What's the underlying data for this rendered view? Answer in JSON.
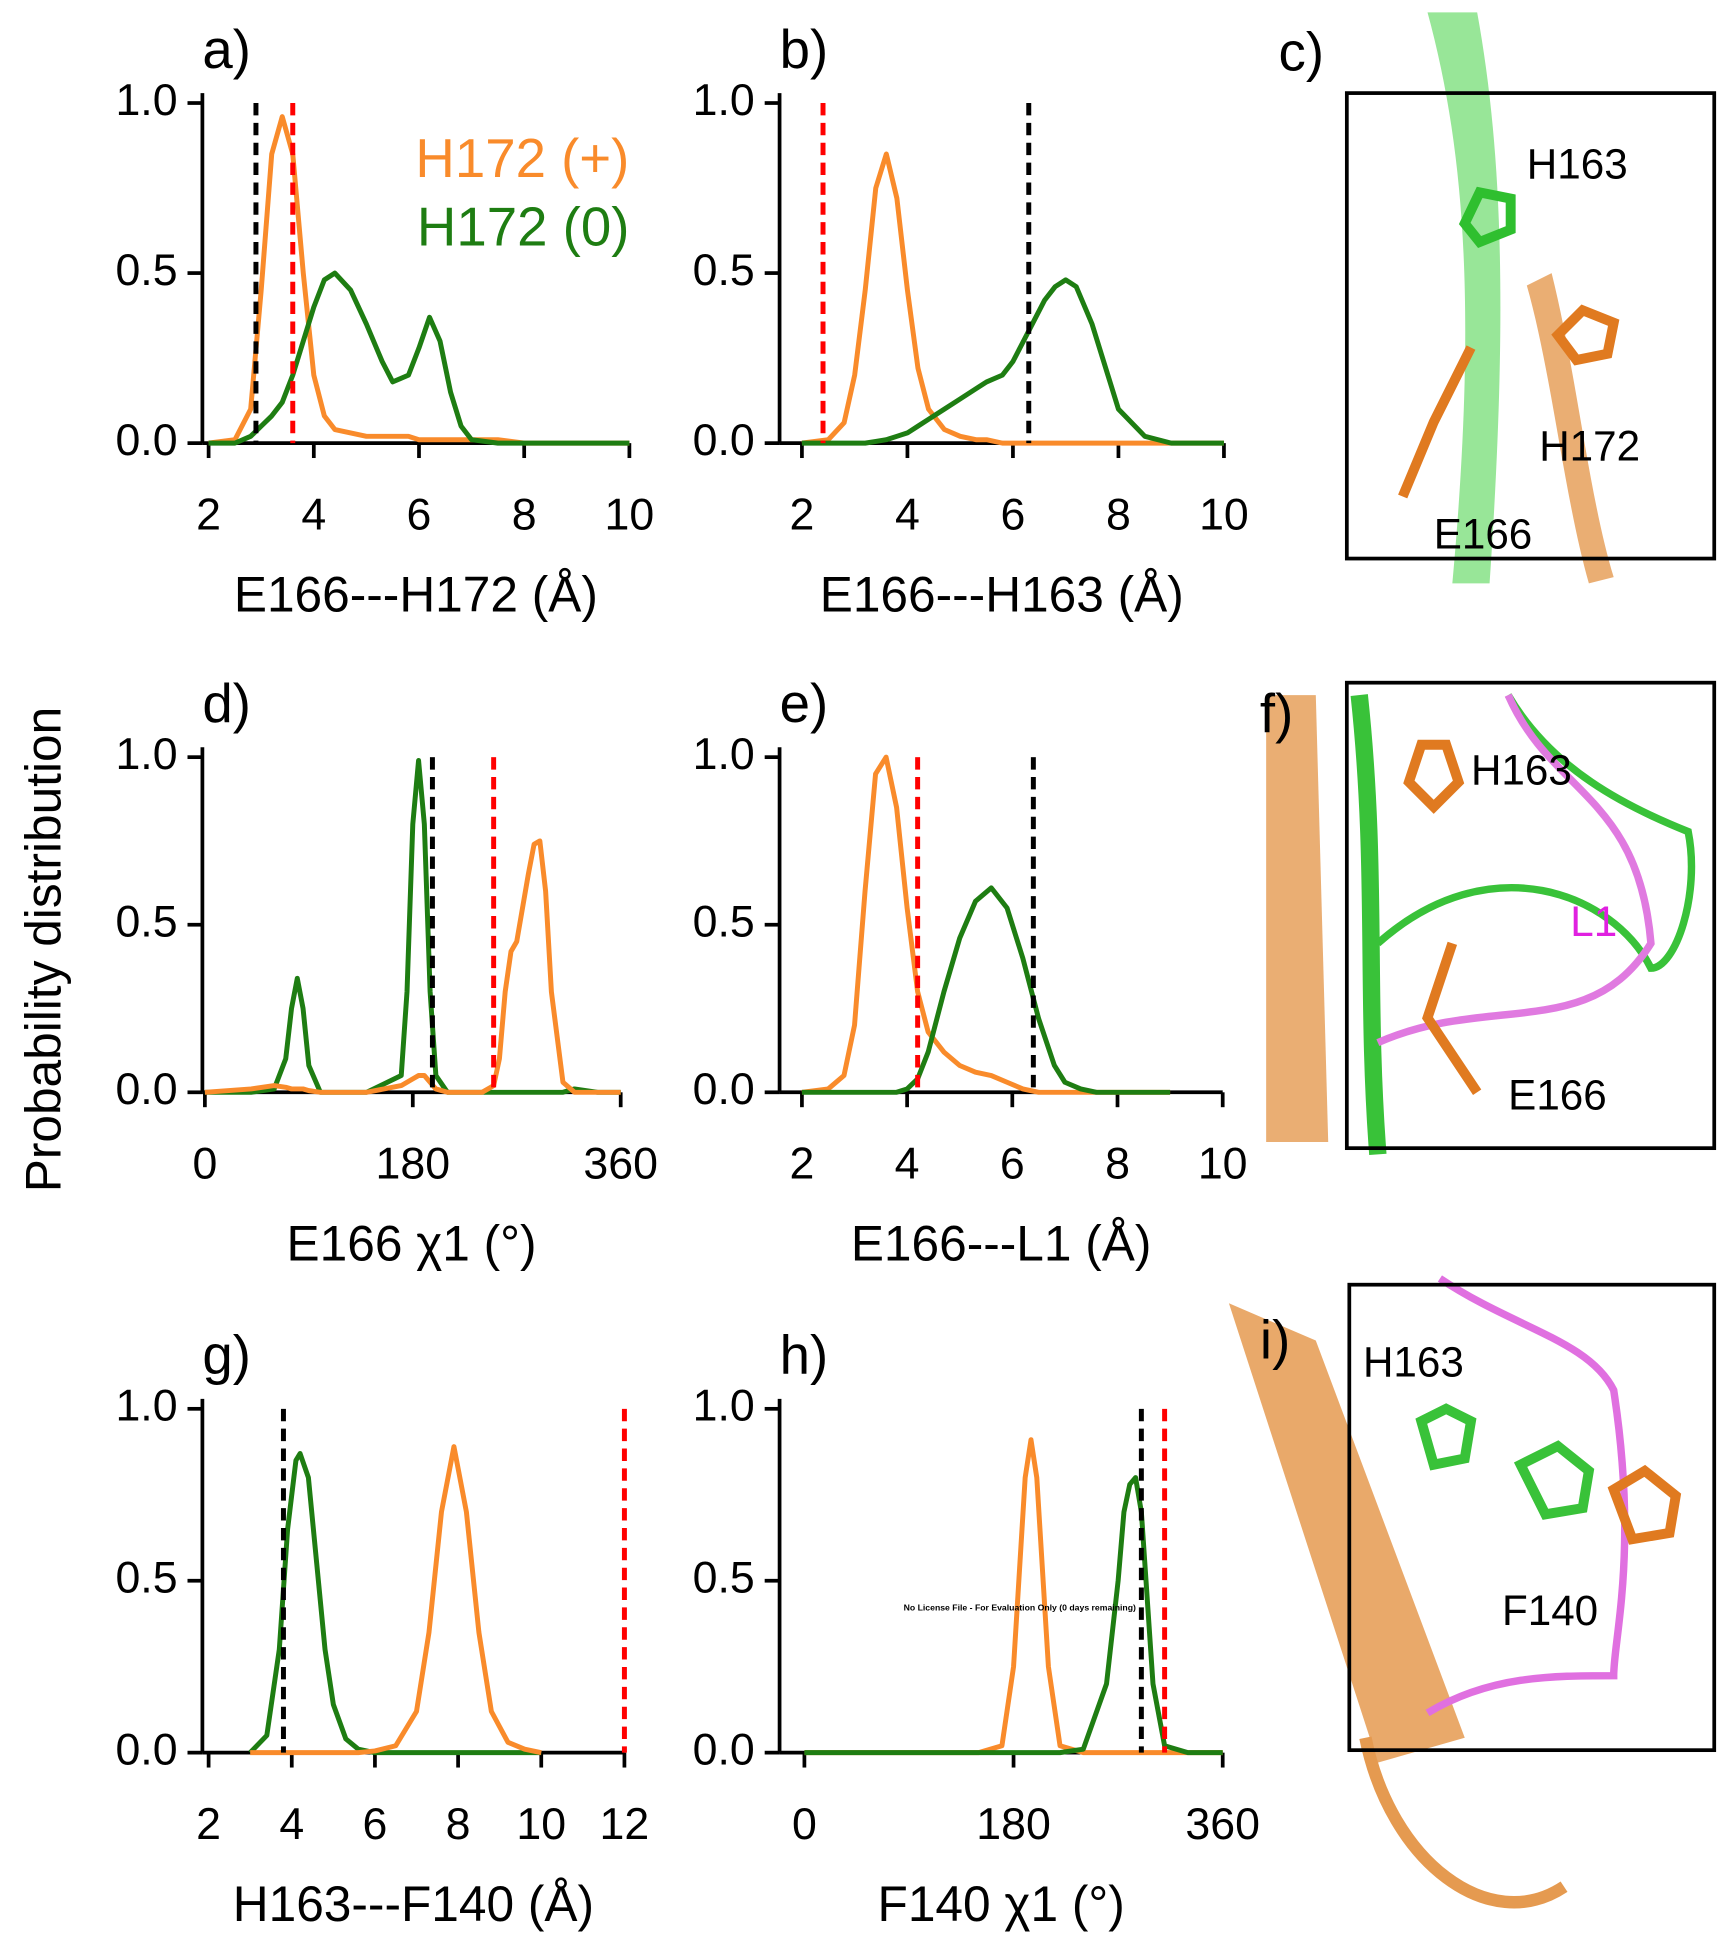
{
  "ylabel": "Probability distribution",
  "chart_data": [
    {
      "type": "line",
      "panel": "a)",
      "xlabel": "E166---H172 (Å)",
      "xlim": [
        2,
        10
      ],
      "xticks": [
        2,
        4,
        6,
        8,
        10
      ],
      "ylim": [
        0,
        1
      ],
      "yticks": [
        {
          "value": 0,
          "label": "0.0"
        },
        0.5,
        {
          "value": 1,
          "label": "1.0"
        }
      ],
      "x": [
        2,
        2.5,
        2.8,
        3.0,
        3.2,
        3.4,
        3.6,
        3.8,
        4.0,
        4.2,
        4.4,
        4.7,
        5.0,
        5.3,
        5.5,
        5.8,
        6.0,
        6.2,
        6.4,
        6.6,
        6.8,
        7.0,
        7.5,
        8,
        9,
        10
      ],
      "series": [
        {
          "name": "H172 (+)",
          "color": "#f98b2b",
          "values": [
            0,
            0.01,
            0.1,
            0.45,
            0.85,
            0.96,
            0.85,
            0.5,
            0.2,
            0.08,
            0.04,
            0.03,
            0.02,
            0.02,
            0.02,
            0.02,
            0.01,
            0.01,
            0.01,
            0.01,
            0.01,
            0.01,
            0.01,
            0,
            0,
            0
          ]
        },
        {
          "name": "H172 (0)",
          "color": "#1e7d12",
          "values": [
            0,
            0,
            0.02,
            0.05,
            0.08,
            0.12,
            0.2,
            0.3,
            0.4,
            0.48,
            0.5,
            0.45,
            0.35,
            0.24,
            0.18,
            0.2,
            0.28,
            0.37,
            0.3,
            0.15,
            0.05,
            0.01,
            0,
            0,
            0,
            0
          ]
        }
      ],
      "vlines": [
        {
          "value": 2.9,
          "color": "#000000"
        },
        {
          "value": 3.6,
          "color": "#ff0000"
        }
      ]
    },
    {
      "type": "line",
      "panel": "b)",
      "xlabel": "E166---H163 (Å)",
      "xlim": [
        2,
        10
      ],
      "xticks": [
        2,
        4,
        6,
        8,
        10
      ],
      "ylim": [
        0,
        1
      ],
      "yticks": [
        {
          "value": 0,
          "label": "0.0"
        },
        0.5,
        {
          "value": 1,
          "label": "1.0"
        }
      ],
      "x": [
        2,
        2.5,
        2.8,
        3.0,
        3.2,
        3.4,
        3.6,
        3.8,
        4.0,
        4.2,
        4.4,
        4.7,
        5.0,
        5.3,
        5.5,
        5.8,
        6.0,
        6.2,
        6.4,
        6.6,
        6.8,
        7.0,
        7.2,
        7.5,
        7.8,
        8.0,
        8.5,
        9,
        10
      ],
      "series": [
        {
          "color": "#f98b2b",
          "values": [
            0,
            0.01,
            0.06,
            0.2,
            0.45,
            0.75,
            0.85,
            0.72,
            0.45,
            0.22,
            0.1,
            0.04,
            0.02,
            0.01,
            0.01,
            0,
            0,
            0,
            0,
            0,
            0,
            0,
            0,
            0,
            0,
            0,
            0,
            0,
            0
          ]
        },
        {
          "color": "#1e7d12",
          "values": [
            0,
            0,
            0,
            0,
            0,
            0.005,
            0.01,
            0.02,
            0.03,
            0.05,
            0.07,
            0.1,
            0.13,
            0.16,
            0.18,
            0.2,
            0.24,
            0.3,
            0.36,
            0.42,
            0.46,
            0.48,
            0.46,
            0.35,
            0.2,
            0.1,
            0.02,
            0,
            0
          ]
        }
      ],
      "vlines": [
        {
          "value": 2.4,
          "color": "#ff0000"
        },
        {
          "value": 6.3,
          "color": "#000000"
        }
      ]
    },
    {
      "type": "line",
      "panel": "d)",
      "xlabel": "E166 χ1 (°)",
      "xlim": [
        0,
        360
      ],
      "xticks": [
        0,
        180,
        360
      ],
      "ylim": [
        0,
        1
      ],
      "yticks": [
        {
          "value": 0,
          "label": "0.0"
        },
        0.5,
        {
          "value": 1,
          "label": "1.0"
        }
      ],
      "x": [
        0,
        40,
        60,
        70,
        75,
        80,
        85,
        90,
        100,
        140,
        170,
        175,
        180,
        185,
        190,
        195,
        200,
        210,
        240,
        250,
        255,
        260,
        265,
        270,
        280,
        285,
        290,
        295,
        300,
        310,
        320,
        340,
        360
      ],
      "series": [
        {
          "color": "#1e7d12",
          "values": [
            0,
            0,
            0.01,
            0.1,
            0.25,
            0.34,
            0.25,
            0.08,
            0,
            0,
            0.05,
            0.3,
            0.8,
            0.99,
            0.8,
            0.3,
            0.05,
            0,
            0,
            0,
            0,
            0,
            0,
            0,
            0,
            0,
            0,
            0,
            0,
            0,
            0.01,
            0,
            0
          ]
        },
        {
          "color": "#f98b2b",
          "values": [
            0,
            0.01,
            0.02,
            0.015,
            0.01,
            0.01,
            0.01,
            0.005,
            0,
            0,
            0.02,
            0.03,
            0.04,
            0.05,
            0.05,
            0.03,
            0.01,
            0,
            0,
            0.02,
            0.1,
            0.3,
            0.42,
            0.45,
            0.65,
            0.74,
            0.75,
            0.6,
            0.3,
            0.03,
            0,
            0,
            0
          ]
        }
      ],
      "vlines": [
        {
          "value": 197,
          "color": "#000000"
        },
        {
          "value": 250,
          "color": "#ff0000"
        }
      ]
    },
    {
      "type": "line",
      "panel": "e)",
      "xlabel": "E166---L1 (Å)",
      "xlim": [
        2,
        10
      ],
      "xticks": [
        2,
        4,
        6,
        8,
        10
      ],
      "ylim": [
        0,
        1
      ],
      "yticks": [
        {
          "value": 0,
          "label": "0.0"
        },
        0.5,
        {
          "value": 1,
          "label": "1.0"
        }
      ],
      "x": [
        2,
        2.5,
        2.8,
        3.0,
        3.2,
        3.4,
        3.6,
        3.8,
        4.0,
        4.2,
        4.4,
        4.7,
        5.0,
        5.3,
        5.6,
        5.9,
        6.2,
        6.5,
        6.8,
        7.0,
        7.3,
        7.6,
        8,
        9
      ],
      "series": [
        {
          "color": "#f98b2b",
          "values": [
            0,
            0.01,
            0.05,
            0.2,
            0.6,
            0.95,
            1.0,
            0.85,
            0.55,
            0.3,
            0.18,
            0.12,
            0.08,
            0.06,
            0.05,
            0.03,
            0.01,
            0,
            0,
            0,
            0,
            0,
            0,
            0
          ]
        },
        {
          "color": "#1e7d12",
          "values": [
            0,
            0,
            0,
            0,
            0,
            0,
            0,
            0,
            0.01,
            0.04,
            0.12,
            0.3,
            0.46,
            0.57,
            0.61,
            0.55,
            0.4,
            0.22,
            0.08,
            0.03,
            0.01,
            0,
            0,
            0
          ]
        }
      ],
      "vlines": [
        {
          "value": 4.2,
          "color": "#ff0000"
        },
        {
          "value": 6.4,
          "color": "#000000"
        }
      ]
    },
    {
      "type": "line",
      "panel": "g)",
      "xlabel": "H163---F140 (Å)",
      "xlim": [
        2,
        12
      ],
      "xticks": [
        2,
        4,
        6,
        8,
        10,
        12
      ],
      "ylim": [
        0,
        1
      ],
      "yticks": [
        {
          "value": 0,
          "label": "0.0"
        },
        0.5,
        {
          "value": 1,
          "label": "1.0"
        }
      ],
      "x": [
        3,
        3.4,
        3.7,
        3.9,
        4.1,
        4.2,
        4.4,
        4.6,
        4.8,
        5.0,
        5.3,
        5.6,
        6.0,
        6.5,
        7.0,
        7.3,
        7.6,
        7.9,
        8.2,
        8.5,
        8.8,
        9.2,
        9.6,
        10
      ],
      "series": [
        {
          "color": "#1e7d12",
          "values": [
            0,
            0.05,
            0.3,
            0.65,
            0.85,
            0.87,
            0.8,
            0.55,
            0.3,
            0.14,
            0.04,
            0.01,
            0,
            0,
            0,
            0,
            0,
            0,
            0,
            0,
            0,
            0,
            0,
            0
          ]
        },
        {
          "color": "#f98b2b",
          "values": [
            0,
            0,
            0,
            0,
            0,
            0,
            0,
            0,
            0,
            0,
            0,
            0,
            0.005,
            0.02,
            0.12,
            0.35,
            0.7,
            0.89,
            0.7,
            0.35,
            0.12,
            0.03,
            0.01,
            0
          ]
        }
      ],
      "vlines": [
        {
          "value": 3.8,
          "color": "#000000"
        },
        {
          "value": 12,
          "color": "#ff0000"
        }
      ]
    },
    {
      "type": "line",
      "panel": "h)",
      "xlabel": "F140 χ1 (°)",
      "xlim": [
        0,
        360
      ],
      "xticks": [
        0,
        180,
        360
      ],
      "ylim": [
        0,
        1
      ],
      "yticks": [
        {
          "value": 0,
          "label": "0.0"
        },
        0.5,
        {
          "value": 1,
          "label": "1.0"
        }
      ],
      "annotation": "No License File - For Evaluation Only (0 days remaining)",
      "x": [
        0,
        100,
        150,
        170,
        180,
        190,
        195,
        200,
        210,
        220,
        240,
        260,
        270,
        275,
        280,
        285,
        290,
        295,
        300,
        310,
        330,
        360
      ],
      "series": [
        {
          "color": "#f98b2b",
          "values": [
            0,
            0,
            0,
            0.02,
            0.25,
            0.8,
            0.91,
            0.8,
            0.25,
            0.02,
            0,
            0,
            0,
            0,
            0,
            0,
            0,
            0,
            0,
            0,
            0,
            0
          ]
        },
        {
          "color": "#1e7d12",
          "values": [
            0,
            0,
            0,
            0,
            0,
            0,
            0,
            0,
            0,
            0,
            0.01,
            0.2,
            0.5,
            0.7,
            0.78,
            0.8,
            0.7,
            0.45,
            0.2,
            0.02,
            0,
            0
          ]
        }
      ],
      "vlines": [
        {
          "value": 290,
          "color": "#000000"
        },
        {
          "value": 310,
          "color": "#ff0000"
        }
      ]
    }
  ],
  "structures": [
    {
      "label": "c)",
      "residues": [
        "H163",
        "H172",
        "E166"
      ]
    },
    {
      "label": "f)",
      "residues": [
        "H163",
        "L1",
        "E166"
      ]
    },
    {
      "label": "i)",
      "residues": [
        "H163",
        "F140"
      ]
    }
  ]
}
